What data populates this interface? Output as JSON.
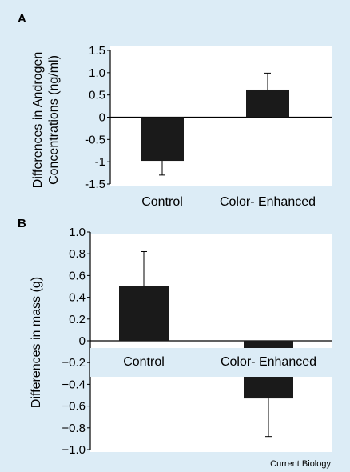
{
  "figure": {
    "credit": "Current Biology",
    "background_color": "#dcecf6",
    "plot_background_color": "#ffffff",
    "bar_color": "#1a1a1a"
  },
  "chart_data": [
    {
      "panel": "A",
      "type": "bar",
      "categories": [
        "Control",
        "Color- Enhanced"
      ],
      "values": [
        -0.98,
        0.62
      ],
      "error_upper": [
        0.32,
        0.37
      ],
      "error_direction": [
        "down",
        "up"
      ],
      "ylabel_lines": [
        "Differences in Androgen",
        "Concentrations (ng/ml)"
      ],
      "ylim": [
        -1.5,
        1.5
      ],
      "yticks": [
        1.5,
        1.0,
        0.5,
        0,
        -0.5,
        -1,
        -1.5
      ],
      "ytick_labels": [
        "1.5",
        "1.0",
        "0.5",
        "0",
        "-0.5",
        "-1",
        "-1.5"
      ],
      "category_labels_position": "bottom",
      "grid": false
    },
    {
      "panel": "B",
      "type": "bar",
      "categories": [
        "Control",
        "Color- Enhanced"
      ],
      "values": [
        0.5,
        -0.53
      ],
      "error_upper": [
        0.32,
        0.35
      ],
      "error_direction": [
        "up",
        "down"
      ],
      "ylabel_lines": [
        "Differences in mass (g)"
      ],
      "ylim": [
        -1.0,
        1.0
      ],
      "yticks": [
        1.0,
        0.8,
        0.6,
        0.4,
        0.2,
        0,
        -0.2,
        -0.4,
        -0.6,
        -0.8,
        -1.0
      ],
      "ytick_labels": [
        "1.0",
        "0.8",
        "0.6",
        "0.4",
        "0.2",
        "0",
        "−0.2",
        "−0.4",
        "−0.6",
        "−0.8",
        "−1.0"
      ],
      "category_labels_position": "inside-below-zero",
      "grid": false
    }
  ]
}
